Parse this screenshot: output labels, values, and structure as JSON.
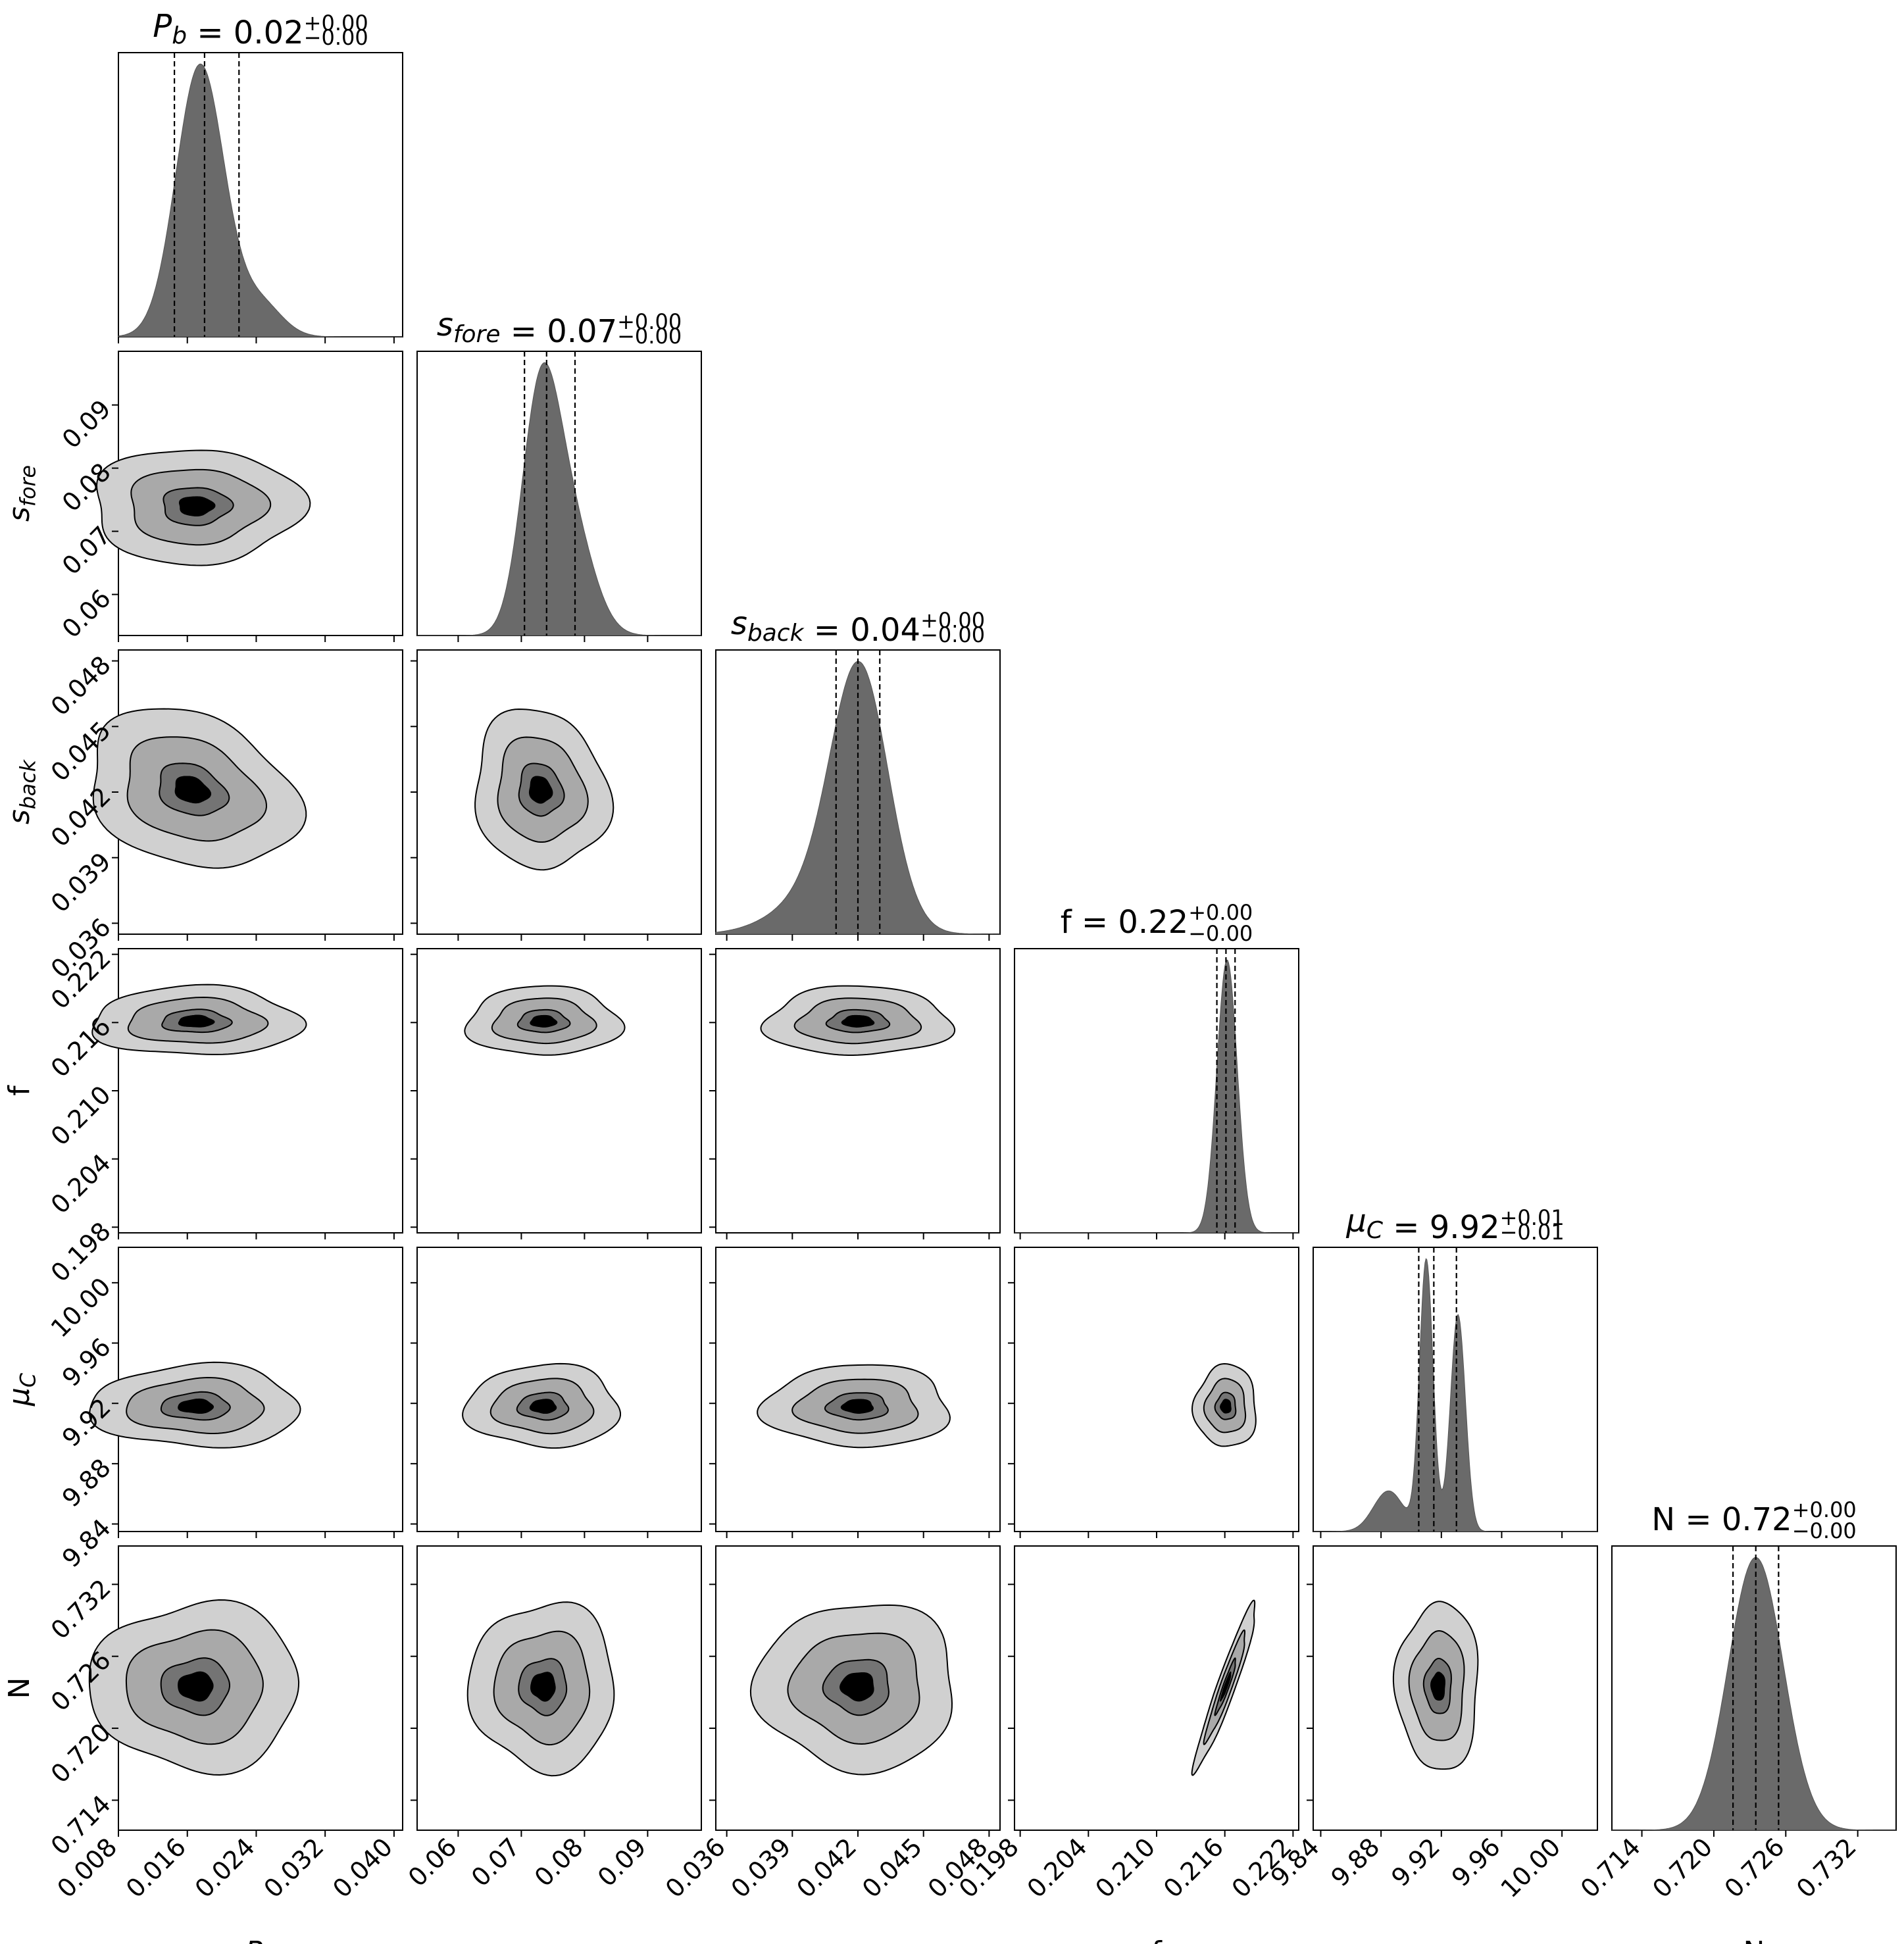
{
  "chart_data": {
    "type": "corner",
    "parameters": [
      {
        "key": "Pb",
        "label_base": "P",
        "label_sub": "b",
        "italic": true,
        "median": 0.018,
        "lo": 0.0145,
        "hi": 0.022,
        "range": [
          0.008,
          0.041
        ],
        "ticks": [
          "0.008",
          "0.016",
          "0.024",
          "0.032",
          "0.040"
        ],
        "title_value": "0.02",
        "title_plus": "+0.00",
        "title_minus": "−0.00"
      },
      {
        "key": "sfore",
        "label_base": "s",
        "label_sub": "fore",
        "italic": true,
        "median": 0.074,
        "lo": 0.0705,
        "hi": 0.0785,
        "range": [
          0.0535,
          0.0985
        ],
        "ticks": [
          "0.06",
          "0.07",
          "0.08",
          "0.09"
        ],
        "title_value": "0.07",
        "title_plus": "+0.00",
        "title_minus": "−0.00"
      },
      {
        "key": "sback",
        "label_base": "s",
        "label_sub": "back",
        "italic": true,
        "median": 0.042,
        "lo": 0.041,
        "hi": 0.043,
        "range": [
          0.0355,
          0.0485
        ],
        "ticks": [
          "0.036",
          "0.039",
          "0.042",
          "0.045",
          "0.048"
        ],
        "title_value": "0.04",
        "title_plus": "+0.00",
        "title_minus": "−0.00"
      },
      {
        "key": "f",
        "label_base": "f",
        "label_sub": "",
        "italic": false,
        "median": 0.2161,
        "lo": 0.2153,
        "hi": 0.2169,
        "range": [
          0.1975,
          0.2225
        ],
        "ticks": [
          "0.198",
          "0.204",
          "0.210",
          "0.216",
          "0.222"
        ],
        "title_value": "0.22",
        "title_plus": "+0.00",
        "title_minus": "−0.00"
      },
      {
        "key": "muC",
        "label_base": "μ",
        "label_sub": "C",
        "italic": true,
        "median": 9.915,
        "lo": 9.905,
        "hi": 9.93,
        "range": [
          9.835,
          10.0235
        ],
        "ticks": [
          "9.84",
          "9.88",
          "9.92",
          "9.96",
          "10.00"
        ],
        "title_value": "9.92",
        "title_plus": "+0.01",
        "title_minus": "−0.01"
      },
      {
        "key": "N",
        "label_base": "N",
        "label_sub": "",
        "italic": false,
        "median": 0.7235,
        "lo": 0.7216,
        "hi": 0.7254,
        "range": [
          0.7115,
          0.7352
        ],
        "ticks": [
          "0.714",
          "0.720",
          "0.726",
          "0.732"
        ],
        "title_value": "0.72",
        "title_plus": "+0.00",
        "title_minus": "−0.00"
      }
    ],
    "marginals": [
      {
        "param": "Pb",
        "components": [
          {
            "w": 1.0,
            "mu": 0.0175,
            "sigma": 0.0028
          },
          {
            "w": 0.12,
            "mu": 0.0245,
            "sigma": 0.0025
          }
        ]
      },
      {
        "param": "sfore",
        "components": [
          {
            "w": 1.0,
            "mu": 0.073,
            "sigma": 0.003
          },
          {
            "w": 0.45,
            "mu": 0.078,
            "sigma": 0.0035
          }
        ]
      },
      {
        "param": "sback",
        "components": [
          {
            "w": 1.0,
            "mu": 0.0421,
            "sigma": 0.0013
          },
          {
            "w": 0.18,
            "mu": 0.0405,
            "sigma": 0.002
          }
        ]
      },
      {
        "param": "f",
        "components": [
          {
            "w": 1.0,
            "mu": 0.2162,
            "sigma": 0.0009
          }
        ]
      },
      {
        "param": "muC",
        "components": [
          {
            "w": 1.0,
            "mu": 9.91,
            "sigma": 0.0045
          },
          {
            "w": 0.8,
            "mu": 9.931,
            "sigma": 0.005
          },
          {
            "w": 0.15,
            "mu": 9.885,
            "sigma": 0.01
          }
        ]
      },
      {
        "param": "N",
        "components": [
          {
            "w": 1.0,
            "mu": 0.7235,
            "sigma": 0.0023
          }
        ]
      }
    ],
    "contour_levels": [
      0.39,
      0.86,
      0.99
    ],
    "contour_colors": [
      "#d0d0d0",
      "#a9a9a9",
      "#747474"
    ],
    "core_color": "#000000",
    "hist_color": "#6a6a6a",
    "pairs": [
      {
        "row": 1,
        "col": 0,
        "cx": 0.017,
        "cy": 0.074,
        "sx": 0.004,
        "sy": 0.003,
        "rho": 0.0
      },
      {
        "row": 2,
        "col": 0,
        "cx": 0.0165,
        "cy": 0.0421,
        "sx": 0.004,
        "sy": 0.0012,
        "rho": -0.25
      },
      {
        "row": 2,
        "col": 1,
        "cx": 0.073,
        "cy": 0.0421,
        "sx": 0.0035,
        "sy": 0.0012,
        "rho": -0.1
      },
      {
        "row": 3,
        "col": 0,
        "cx": 0.017,
        "cy": 0.2161,
        "sx": 0.004,
        "sy": 0.001,
        "rho": 0.0
      },
      {
        "row": 3,
        "col": 1,
        "cx": 0.0735,
        "cy": 0.2161,
        "sx": 0.004,
        "sy": 0.001,
        "rho": 0.0
      },
      {
        "row": 3,
        "col": 2,
        "cx": 0.042,
        "cy": 0.2161,
        "sx": 0.0014,
        "sy": 0.001,
        "rho": 0.0
      },
      {
        "row": 4,
        "col": 0,
        "cx": 0.017,
        "cy": 9.918,
        "sx": 0.004,
        "sy": 0.009,
        "rho": 0.0
      },
      {
        "row": 4,
        "col": 1,
        "cx": 0.0735,
        "cy": 9.918,
        "sx": 0.004,
        "sy": 0.009,
        "rho": 0.0
      },
      {
        "row": 4,
        "col": 2,
        "cx": 0.042,
        "cy": 9.918,
        "sx": 0.0014,
        "sy": 0.009,
        "rho": 0.0
      },
      {
        "row": 4,
        "col": 3,
        "cx": 0.2161,
        "cy": 9.918,
        "sx": 0.0009,
        "sy": 0.009,
        "rho": 0.0
      },
      {
        "row": 5,
        "col": 0,
        "cx": 0.017,
        "cy": 0.7235,
        "sx": 0.004,
        "sy": 0.0023,
        "rho": 0.0
      },
      {
        "row": 5,
        "col": 1,
        "cx": 0.0735,
        "cy": 0.7235,
        "sx": 0.0038,
        "sy": 0.0023,
        "rho": 0.0
      },
      {
        "row": 5,
        "col": 2,
        "cx": 0.042,
        "cy": 0.7235,
        "sx": 0.0015,
        "sy": 0.0023,
        "rho": 0.0
      },
      {
        "row": 5,
        "col": 3,
        "cx": 0.2161,
        "cy": 0.7235,
        "sx": 0.0009,
        "sy": 0.0023,
        "rho": 0.95
      },
      {
        "row": 5,
        "col": 4,
        "cx": 9.918,
        "cy": 0.7235,
        "sx": 0.009,
        "sy": 0.0023,
        "rho": 0.0
      }
    ]
  }
}
